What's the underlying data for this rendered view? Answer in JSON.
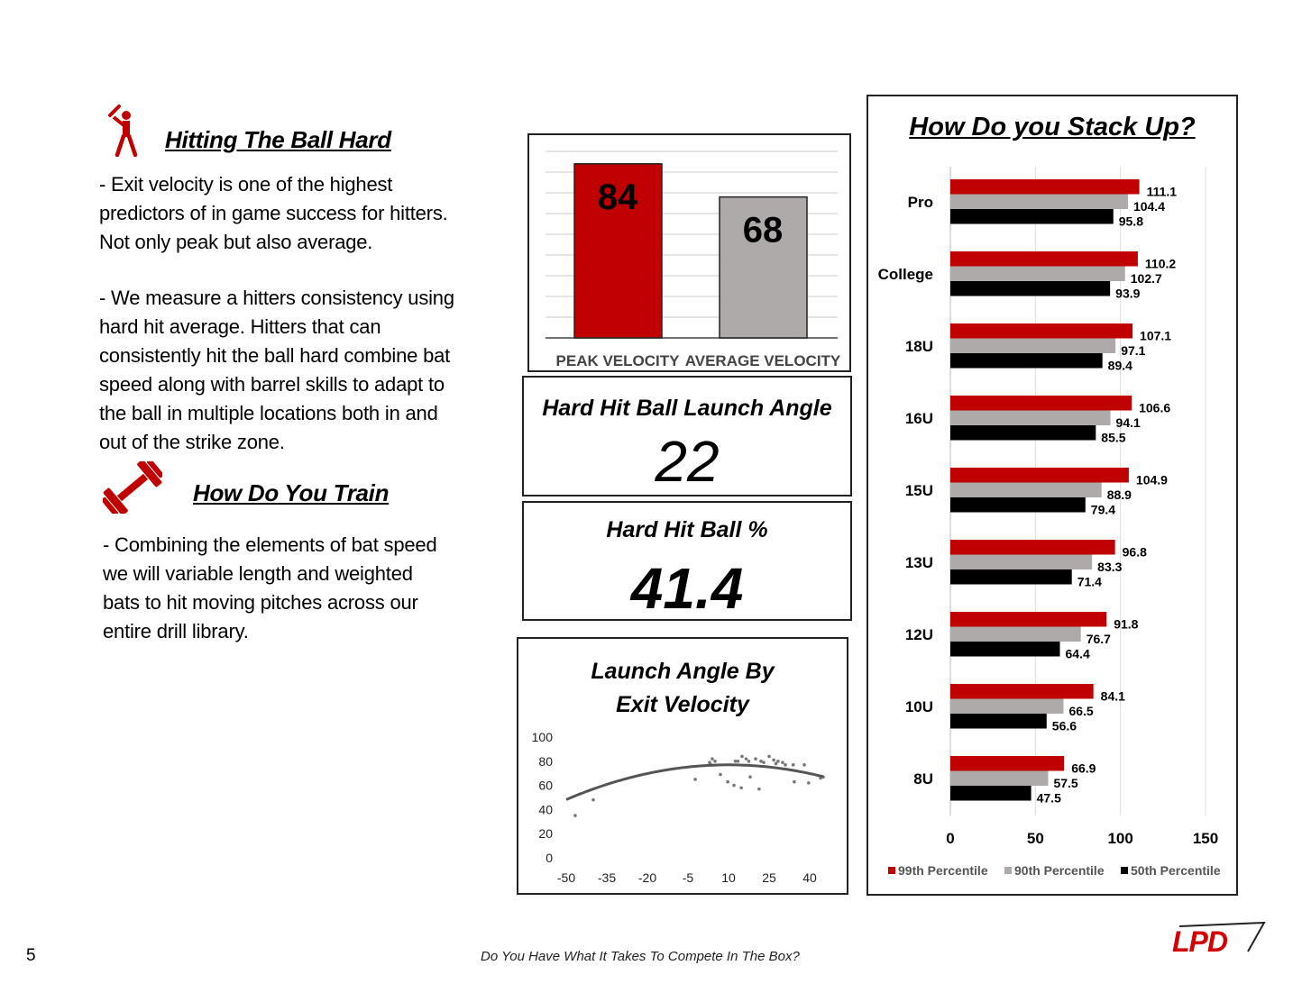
{
  "page_number": "5",
  "footer_text": "Do You Have What It Takes To Compete In The Box?",
  "logo_text": "LPD",
  "colors": {
    "red": "#c00000",
    "gray": "#aeaaaa",
    "black": "#000000"
  },
  "section1": {
    "icon": "batter-icon",
    "title": "Hitting The Ball Hard",
    "para1": [
      "-  Exit velocity is one of the highest",
      "predictors of in game success for hitters.",
      "Not only peak but also average."
    ],
    "para2": [
      "-  We measure a hitters consistency using",
      "hard hit average.  Hitters that can",
      "consistently hit the ball hard combine bat",
      "speed along with barrel skills to adapt to",
      "the ball in multiple locations both in and",
      "out of the strike zone."
    ]
  },
  "section2": {
    "icon": "dumbbell-icon",
    "title": "How Do You Train",
    "para": [
      "- Combining  the elements of bat speed",
      "we will variable length and weighted",
      "bats to hit moving pitches across our",
      "entire drill library."
    ]
  },
  "launch_angle_card": {
    "title": "Hard Hit Ball Launch Angle",
    "value": "22"
  },
  "hard_hit_card": {
    "title": "Hard Hit Ball %",
    "value": "41.4"
  },
  "chart_data": [
    {
      "type": "bar",
      "categories": [
        "PEAK VELOCITY",
        "AVERAGE VELOCITY"
      ],
      "values": [
        84,
        68
      ],
      "colors": [
        "#c00000",
        "#aeaaaa"
      ],
      "ylim": [
        0,
        90
      ],
      "grid": true,
      "data_labels": [
        "84",
        "68"
      ]
    },
    {
      "type": "scatter",
      "title": "Launch Angle By Exit Velocity",
      "xlim": [
        -50,
        45
      ],
      "ylim": [
        0,
        100
      ],
      "xticks": [
        -50,
        -35,
        -20,
        -5,
        10,
        25,
        40
      ],
      "yticks": [
        0,
        20,
        40,
        60,
        80,
        100
      ],
      "trendline": "polynomial",
      "points": [
        [
          -46.7,
          35
        ],
        [
          -40,
          48
        ],
        [
          -2.3,
          65
        ],
        [
          3,
          79
        ],
        [
          4,
          82
        ],
        [
          5,
          80
        ],
        [
          3.5,
          77
        ],
        [
          7,
          69
        ],
        [
          9.7,
          63
        ],
        [
          12,
          60
        ],
        [
          14.7,
          58
        ],
        [
          12.5,
          80
        ],
        [
          13.5,
          80
        ],
        [
          15,
          84
        ],
        [
          16.5,
          82
        ],
        [
          18,
          67
        ],
        [
          17.5,
          80
        ],
        [
          21.3,
          57
        ],
        [
          20,
          82
        ],
        [
          22,
          80
        ],
        [
          23,
          79
        ],
        [
          25,
          84
        ],
        [
          26.7,
          81
        ],
        [
          27.5,
          78
        ],
        [
          28.3,
          80
        ],
        [
          30,
          79
        ],
        [
          31,
          77
        ],
        [
          33.9,
          77
        ],
        [
          34.3,
          63
        ],
        [
          38,
          77
        ],
        [
          39.6,
          62
        ],
        [
          44,
          66
        ],
        [
          45,
          67
        ]
      ]
    },
    {
      "type": "bar",
      "orientation": "horizontal",
      "title": "How Do you Stack Up?",
      "categories": [
        "Pro",
        "College",
        "18U",
        "16U",
        "15U",
        "13U",
        "12U",
        "10U",
        "8U"
      ],
      "series": [
        {
          "name": "99th Percentile",
          "color": "#c00000",
          "values": [
            111.1,
            110.2,
            107.1,
            106.6,
            104.9,
            96.8,
            91.8,
            84.1,
            66.9
          ]
        },
        {
          "name": "90th Percentile",
          "color": "#aeaaaa",
          "values": [
            104.4,
            102.7,
            97.1,
            94.1,
            88.9,
            83.3,
            76.7,
            66.5,
            57.5
          ]
        },
        {
          "name": "50th Percentile",
          "color": "#000000",
          "values": [
            95.8,
            93.9,
            89.4,
            85.5,
            79.4,
            71.4,
            64.4,
            56.6,
            47.5
          ]
        }
      ],
      "xlim": [
        0,
        150
      ],
      "xticks": [
        "0",
        "50",
        "100",
        "150"
      ],
      "grid": true,
      "legend": "bottom"
    }
  ]
}
